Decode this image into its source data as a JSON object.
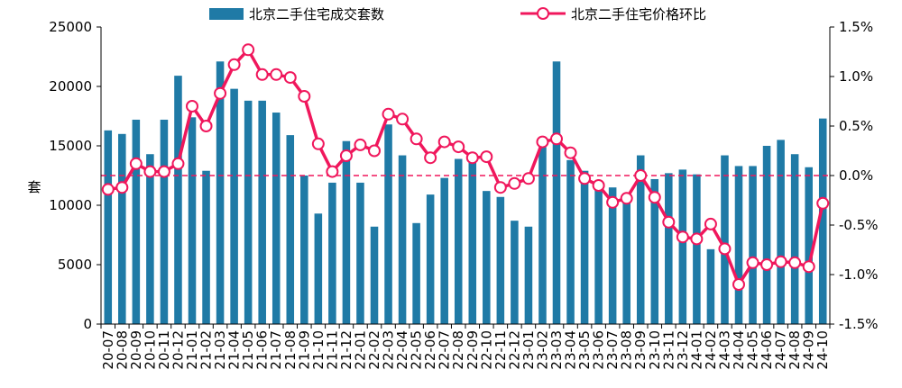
{
  "chart_data": {
    "type": "bar",
    "categories": [
      "20-07",
      "20-08",
      "20-09",
      "20-10",
      "20-11",
      "20-12",
      "21-01",
      "21-02",
      "21-03",
      "21-04",
      "21-05",
      "21-06",
      "21-07",
      "21-08",
      "21-09",
      "21-10",
      "21-11",
      "21-12",
      "22-01",
      "22-02",
      "22-03",
      "22-04",
      "22-05",
      "22-06",
      "22-07",
      "22-08",
      "22-09",
      "22-10",
      "22-11",
      "22-12",
      "23-01",
      "23-02",
      "23-03",
      "23-04",
      "23-05",
      "23-06",
      "23-07",
      "23-08",
      "23-09",
      "23-10",
      "23-11",
      "23-12",
      "24-01",
      "24-02",
      "24-03",
      "24-04",
      "24-05",
      "24-06",
      "24-07",
      "24-08",
      "24-09",
      "24-10"
    ],
    "series": [
      {
        "name": "北京二手住宅成交套数",
        "kind": "bar",
        "axis": "left",
        "color": "#1f7aa6",
        "values": [
          16300,
          16000,
          17200,
          14300,
          17200,
          20900,
          17400,
          12900,
          22100,
          19800,
          18800,
          18800,
          17800,
          15900,
          12500,
          9300,
          11900,
          15400,
          11900,
          8200,
          16800,
          14200,
          8500,
          10900,
          12300,
          13900,
          13900,
          11200,
          10700,
          8700,
          8200,
          14900,
          22100,
          13800,
          12900,
          11900,
          11500,
          11000,
          14200,
          12200,
          12700,
          13000,
          12600,
          6300,
          14200,
          13300,
          13300,
          15000,
          15500,
          14300,
          13200,
          17300
        ]
      },
      {
        "name": "北京二手住宅价格环比",
        "kind": "line",
        "axis": "right",
        "color": "#f0175c",
        "values": [
          -0.14,
          -0.12,
          0.12,
          0.04,
          0.04,
          0.12,
          0.7,
          0.5,
          0.83,
          1.12,
          1.27,
          1.02,
          1.02,
          0.99,
          0.8,
          0.32,
          0.04,
          0.2,
          0.31,
          0.25,
          0.62,
          0.57,
          0.37,
          0.18,
          0.34,
          0.29,
          0.18,
          0.19,
          -0.12,
          -0.08,
          -0.03,
          0.34,
          0.37,
          0.23,
          -0.03,
          -0.1,
          -0.27,
          -0.23,
          0.0,
          -0.22,
          -0.47,
          -0.62,
          -0.64,
          -0.49,
          -0.74,
          -1.1,
          -0.88,
          -0.9,
          -0.87,
          -0.88,
          -0.92,
          -0.28
        ]
      }
    ],
    "ylabel": "套",
    "ylim": [
      0,
      25000
    ],
    "y_ticks": [
      "0",
      "5000",
      "10000",
      "15000",
      "20000",
      "25000"
    ],
    "y2lim": [
      -1.5,
      1.5
    ],
    "y2_ticks": [
      "-1.5%",
      "-1.0%",
      "-0.5%",
      "0.0%",
      "0.5%",
      "1.0%",
      "1.5%"
    ],
    "legend_position": "top",
    "zero_line_color": "#f0175c"
  }
}
